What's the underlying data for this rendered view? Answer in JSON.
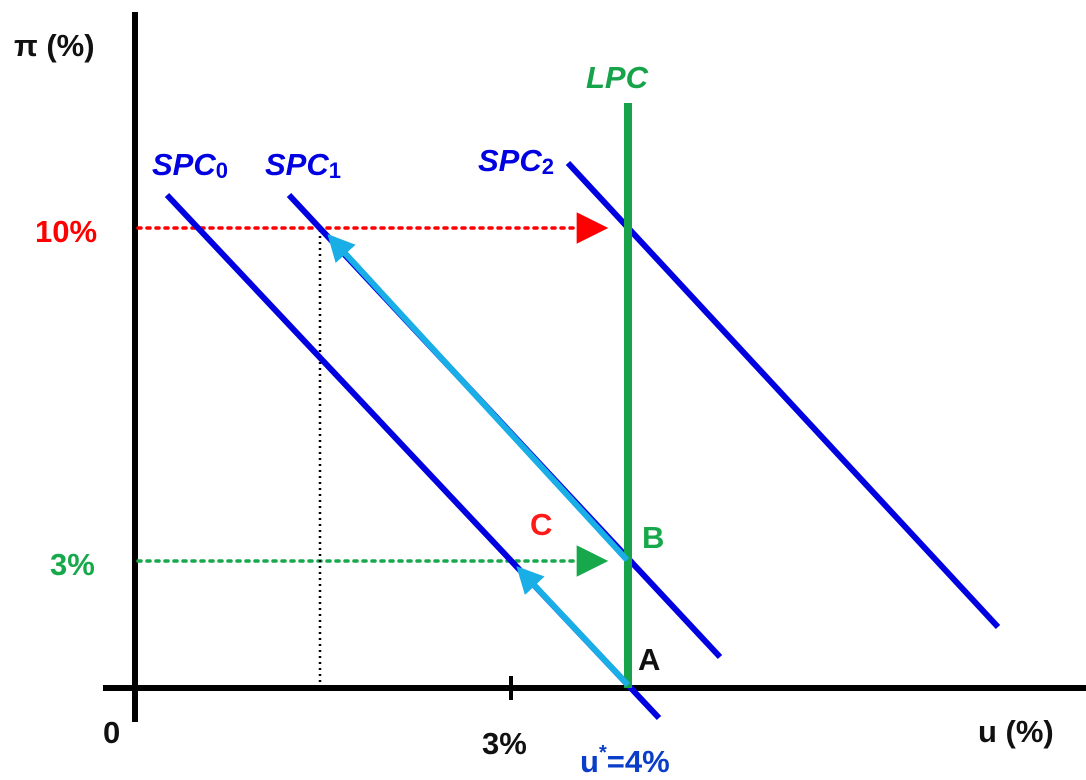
{
  "axes": {
    "y_label": "π (%)",
    "x_label": "u (%)",
    "origin_label": "0"
  },
  "ticks": {
    "y_high": "10%",
    "y_low": "3%",
    "x_low": "3%",
    "x_natural": "=4%",
    "x_natural_var": "u",
    "x_natural_sup": "*"
  },
  "curves": {
    "lpc": "LPC",
    "spc0": {
      "base": "SPC",
      "sub": "0"
    },
    "spc1": {
      "base": "SPC",
      "sub": "1"
    },
    "spc2": {
      "base": "SPC",
      "sub": "2"
    }
  },
  "points": {
    "a": "A",
    "b": "B",
    "c": "C"
  },
  "colors": {
    "axis": "#000000",
    "spc": "#0000e0",
    "lpc": "#17a34a",
    "movement_arrow": "#19aee6",
    "ten_percent": "#ff0000",
    "three_percent": "#18a84c",
    "point_a": "#111111",
    "point_b": "#18a84c",
    "point_c": "#ff1a1a",
    "natural_rate_label": "#0a3dc8"
  }
}
